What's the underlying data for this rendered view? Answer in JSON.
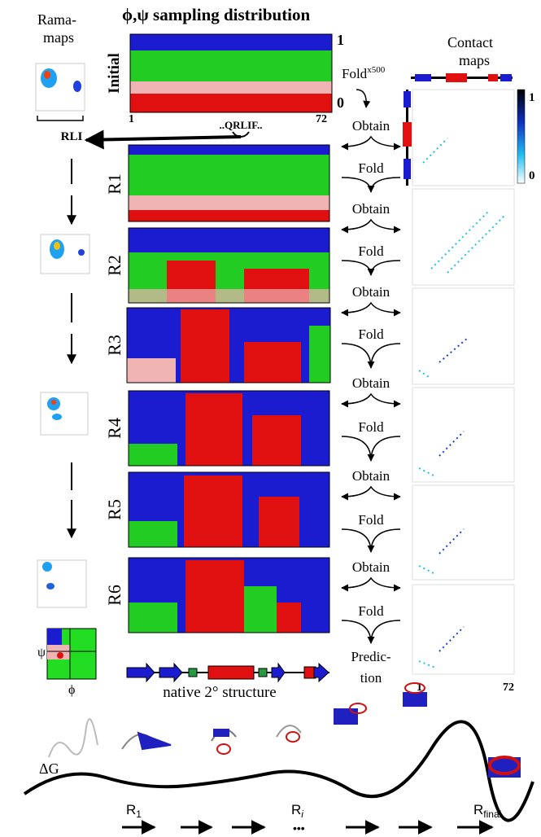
{
  "title": "ϕ,ψ sampling distribution",
  "rama_label": [
    "Rama-",
    "maps"
  ],
  "contact_label": [
    "Contact",
    "maps"
  ],
  "initial": {
    "label": "Initial",
    "y_top": "1",
    "y_bottom": "0",
    "x_start": "1",
    "x_end": "72",
    "segment": "..QRLIF.."
  },
  "rli": "RLI",
  "fold_initial": {
    "label": "Fold",
    "sup": "x500"
  },
  "rounds": [
    "R1",
    "R2",
    "R3",
    "R4",
    "R5",
    "R6"
  ],
  "steps": [
    {
      "obtain": "Obtain",
      "fold": "Fold"
    },
    {
      "obtain": "Obtain",
      "fold": "Fold"
    },
    {
      "obtain": "Obtain",
      "fold": "Fold"
    },
    {
      "obtain": "Obtain",
      "fold": "Fold"
    },
    {
      "obtain": "Obtain",
      "fold": "Fold"
    },
    {
      "obtain": "Obtain",
      "fold": "Fold"
    }
  ],
  "prediction": [
    "Predic-",
    "tion"
  ],
  "native": "native 2° structure",
  "legend_axes": {
    "psi": "ψ",
    "phi": "ϕ"
  },
  "colorbar": {
    "top": "1",
    "bottom": "0"
  },
  "contact_axis": {
    "start": "1",
    "end": "72"
  },
  "landscape": {
    "energy": "ΔG",
    "stages": [
      {
        "label": "R",
        "sub": "1"
      },
      {
        "label": "R",
        "sub": "i"
      },
      {
        "label": "R",
        "sub": "final"
      }
    ],
    "dots": "•••"
  }
}
